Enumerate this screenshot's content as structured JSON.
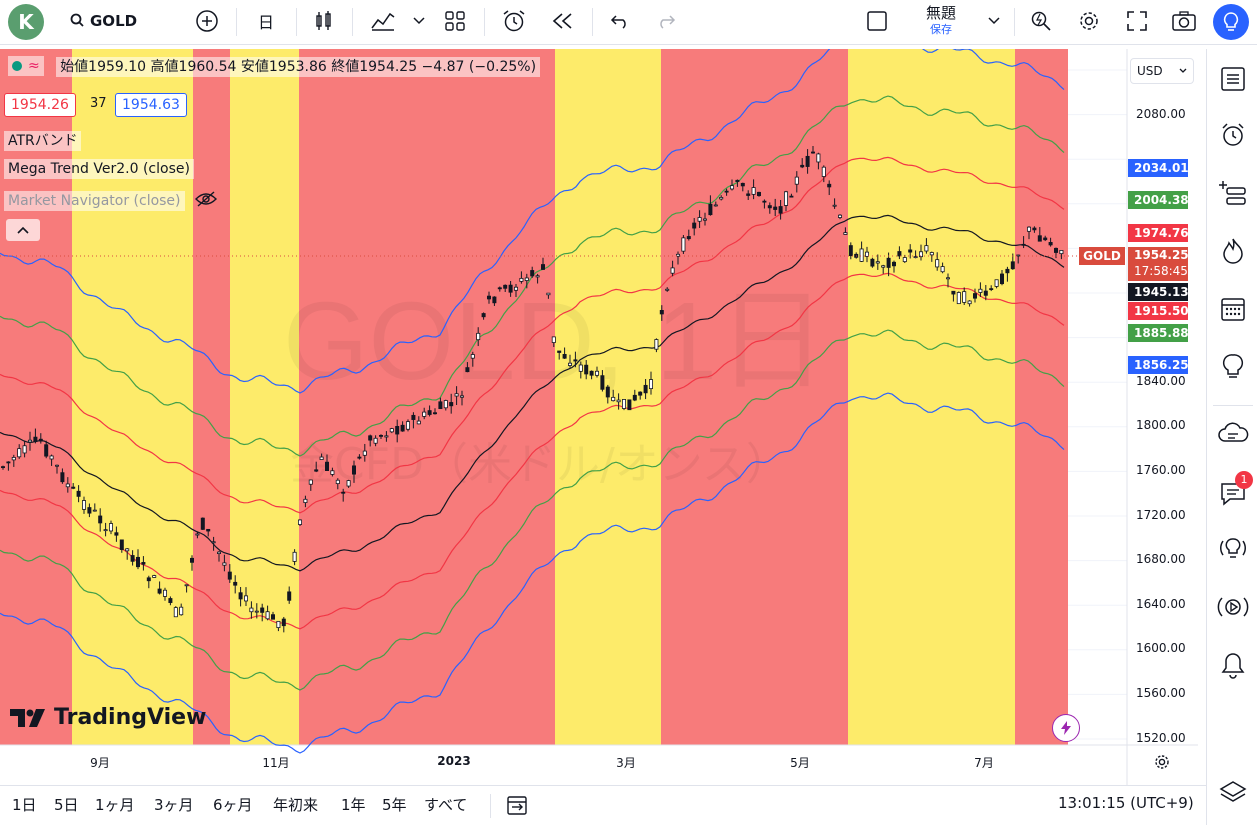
{
  "toolbar": {
    "avatar_letter": "K",
    "symbol": "GOLD",
    "interval": "日",
    "layout_name": "無題",
    "save_label": "保存"
  },
  "legend": {
    "ohlc": "始値1959.10  高値1960.54  安値1953.86  終値1954.25  −4.87 (−0.25%)",
    "bid": "1954.26",
    "spread": "37",
    "ask": "1954.63",
    "indicators": [
      "ATRバンド",
      "Mega Trend Ver2.0 (close)",
      "Market Navigator (close)"
    ]
  },
  "watermark": {
    "big": "GOLD, 1日",
    "small": "金CFD（米ドル/オンス）"
  },
  "currency": "USD",
  "price_axis": {
    "ticks": [
      "2080.00",
      "1840.00",
      "1800.00",
      "1760.00",
      "1720.00",
      "1680.00",
      "1640.00",
      "1600.00",
      "1560.00",
      "1520.00"
    ]
  },
  "price_tags": [
    {
      "label": "2034.01",
      "color": "#2962ff"
    },
    {
      "label": "2004.38",
      "color": "#43a047"
    },
    {
      "label": "1974.76",
      "color": "#f23645"
    },
    {
      "label": "1954.25",
      "color": "#d94b3d",
      "sub": "17:58:45"
    },
    {
      "label": "1945.13",
      "color": "#131722"
    },
    {
      "label": "1915.50",
      "color": "#f23645"
    },
    {
      "label": "1885.88",
      "color": "#43a047"
    },
    {
      "label": "1856.25",
      "color": "#2962ff"
    }
  ],
  "symbol_tag": "GOLD",
  "time_axis": {
    "ticks": [
      "9月",
      "11月",
      "2023",
      "3月",
      "5月",
      "7月"
    ]
  },
  "bottombar": {
    "ranges": [
      "1日",
      "5日",
      "1ヶ月",
      "3ヶ月",
      "6ヶ月",
      "年初来",
      "1年",
      "5年",
      "すべて"
    ],
    "clock": "13:01:15 (UTC+9)"
  },
  "brand": "TradingView",
  "notifications_count": "1",
  "colors": {
    "red_zone": "#f77b7b",
    "yellow_zone": "#fdeb6a",
    "upper": "#2962ff",
    "mid_green": "#43a047",
    "mid_red": "#f23645",
    "center": "#131722"
  }
}
